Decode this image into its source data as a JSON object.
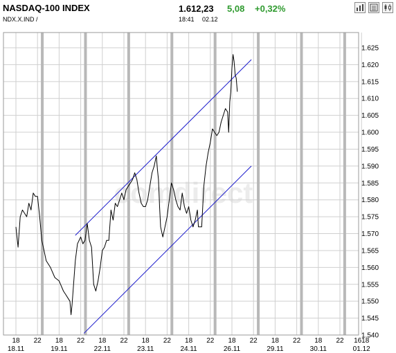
{
  "header": {
    "title": "NASDAQ-100 INDEX",
    "symbol": "NDX.X.IND  /",
    "price": "1.612,23",
    "change": "5,08",
    "change_pct": "+0,32%",
    "time": "18:41",
    "date": "02.12",
    "toolbar_icons": [
      "bar-chart-icon",
      "news-icon",
      "candlestick-icon"
    ]
  },
  "watermark": "comdirect",
  "colors": {
    "up": "#2e9a2e",
    "channel": "#1a1acc",
    "grid": "#cfcfcf",
    "series": "#000000"
  },
  "chart_data": {
    "type": "line",
    "ylim": [
      1.54,
      1.625
    ],
    "y_ticks": [
      "1.625",
      "1.620",
      "1.615",
      "1.610",
      "1.605",
      "1.600",
      "1.595",
      "1.590",
      "1.585",
      "1.580",
      "1.575",
      "1.570",
      "1.565",
      "1.560",
      "1.555",
      "1.550",
      "1.545",
      "1.540"
    ],
    "x_ticks": [
      "18",
      "22",
      "18",
      "22",
      "18",
      "22",
      "18",
      "22",
      "18",
      "22",
      "18",
      "22",
      "18",
      "22",
      "18",
      "22",
      "1618"
    ],
    "date_labels": [
      "18.11",
      "19.11",
      "22.11",
      "23.11",
      "24.11",
      "26.11",
      "29.11",
      "30.11",
      "01.12"
    ],
    "series": [
      {
        "values": [
          [
            0,
            1.572
          ],
          [
            0.1,
            1.566
          ],
          [
            0.2,
            1.575
          ],
          [
            0.3,
            1.577
          ],
          [
            0.5,
            1.575
          ],
          [
            0.6,
            1.579
          ],
          [
            0.7,
            1.577
          ],
          [
            0.8,
            1.582
          ],
          [
            0.9,
            1.581
          ],
          [
            1.0,
            1.581
          ],
          [
            1.1,
            1.575
          ],
          [
            1.2,
            1.568
          ],
          [
            1.3,
            1.565
          ],
          [
            1.4,
            1.562
          ],
          [
            1.6,
            1.56
          ],
          [
            1.8,
            1.557
          ],
          [
            2.0,
            1.556
          ],
          [
            2.2,
            1.553
          ],
          [
            2.3,
            1.552
          ],
          [
            2.4,
            1.551
          ],
          [
            2.5,
            1.55
          ],
          [
            2.55,
            1.546
          ],
          [
            2.6,
            1.549
          ],
          [
            2.75,
            1.562
          ],
          [
            2.85,
            1.567
          ],
          [
            3.0,
            1.569
          ],
          [
            3.1,
            1.567
          ],
          [
            3.2,
            1.568
          ],
          [
            3.3,
            1.573
          ],
          [
            3.4,
            1.568
          ],
          [
            3.5,
            1.566
          ],
          [
            3.6,
            1.555
          ],
          [
            3.7,
            1.553
          ],
          [
            3.8,
            1.556
          ],
          [
            3.9,
            1.56
          ],
          [
            4.0,
            1.565
          ],
          [
            4.1,
            1.566
          ],
          [
            4.2,
            1.568
          ],
          [
            4.3,
            1.568
          ],
          [
            4.4,
            1.577
          ],
          [
            4.5,
            1.574
          ],
          [
            4.6,
            1.579
          ],
          [
            4.7,
            1.578
          ],
          [
            4.8,
            1.58
          ],
          [
            4.9,
            1.582
          ],
          [
            5.0,
            1.58
          ],
          [
            5.1,
            1.583
          ],
          [
            5.2,
            1.584
          ],
          [
            5.3,
            1.585
          ],
          [
            5.4,
            1.586
          ],
          [
            5.5,
            1.588
          ],
          [
            5.6,
            1.586
          ],
          [
            5.7,
            1.582
          ],
          [
            5.8,
            1.579
          ],
          [
            5.9,
            1.578
          ],
          [
            6.0,
            1.578
          ],
          [
            6.1,
            1.58
          ],
          [
            6.2,
            1.584
          ],
          [
            6.3,
            1.588
          ],
          [
            6.4,
            1.59
          ],
          [
            6.5,
            1.593
          ],
          [
            6.55,
            1.589
          ],
          [
            6.6,
            1.586
          ],
          [
            6.65,
            1.578
          ],
          [
            6.7,
            1.572
          ],
          [
            6.8,
            1.569
          ],
          [
            6.9,
            1.572
          ],
          [
            7.0,
            1.575
          ],
          [
            7.1,
            1.58
          ],
          [
            7.2,
            1.585
          ],
          [
            7.3,
            1.583
          ],
          [
            7.4,
            1.58
          ],
          [
            7.5,
            1.578
          ],
          [
            7.6,
            1.577
          ],
          [
            7.7,
            1.582
          ],
          [
            7.8,
            1.578
          ],
          [
            7.9,
            1.576
          ],
          [
            8.0,
            1.578
          ],
          [
            8.1,
            1.574
          ],
          [
            8.2,
            1.572
          ],
          [
            8.3,
            1.574
          ],
          [
            8.4,
            1.577
          ],
          [
            8.45,
            1.572
          ],
          [
            8.6,
            1.572
          ],
          [
            8.7,
            1.584
          ],
          [
            8.8,
            1.59
          ],
          [
            8.9,
            1.594
          ],
          [
            9.0,
            1.597
          ],
          [
            9.1,
            1.601
          ],
          [
            9.2,
            1.6
          ],
          [
            9.3,
            1.599
          ],
          [
            9.4,
            1.6
          ],
          [
            9.5,
            1.603
          ],
          [
            9.6,
            1.605
          ],
          [
            9.7,
            1.607
          ],
          [
            9.8,
            1.606
          ],
          [
            9.85,
            1.6
          ],
          [
            9.9,
            1.609
          ],
          [
            9.95,
            1.612
          ],
          [
            10.0,
            1.619
          ],
          [
            10.05,
            1.623
          ],
          [
            10.1,
            1.621
          ],
          [
            10.15,
            1.617
          ],
          [
            10.2,
            1.616
          ],
          [
            10.25,
            1.612
          ]
        ]
      }
    ],
    "channel_lines": [
      {
        "from": [
          2.75,
          1.5695
        ],
        "to": [
          10.9,
          1.6215
        ]
      },
      {
        "from": [
          3.15,
          1.5405
        ],
        "to": [
          10.9,
          1.59
        ]
      }
    ],
    "grid": true
  }
}
